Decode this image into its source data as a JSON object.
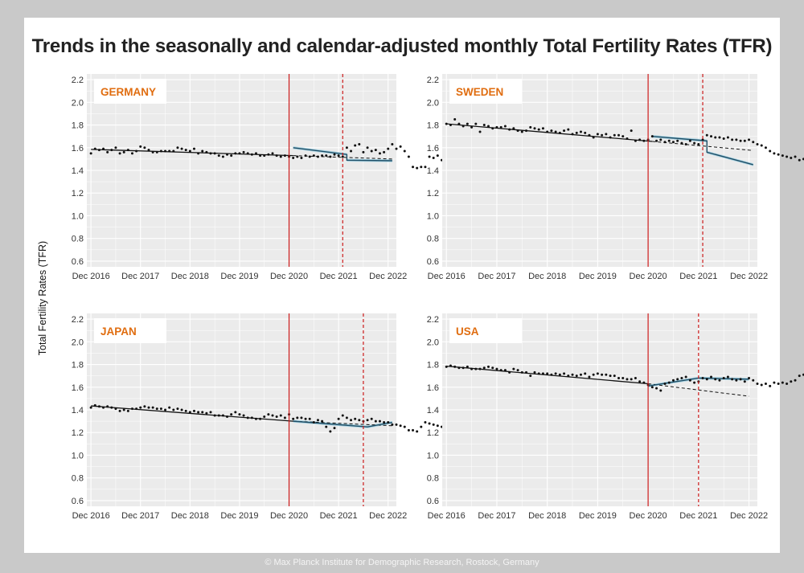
{
  "title": "Trends in the seasonally and calendar-adjusted monthly Total Fertility Rates (TFR)",
  "ylabel": "Total Fertility Rates (TFR)",
  "footer": "© Max Planck Institute for Demographic Research, Rostock, Germany",
  "colors": {
    "background": "#c9c9c9",
    "panel": "#ebebeb",
    "grid": "#ffffff",
    "points": "#111111",
    "trend": "#111111",
    "fitted": "#1f4e66",
    "ribbon": "#9dcfe0",
    "vline": "#cc1a1a",
    "country_label": "#e06d10"
  },
  "chart_data": [
    {
      "type": "scatter",
      "country": "GERMANY",
      "x_ticks": [
        "Dec 2016",
        "Dec 2017",
        "Dec 2018",
        "Dec 2019",
        "Dec 2020",
        "Dec 2021",
        "Dec 2022"
      ],
      "y_ticks": [
        "0.6",
        "0.8",
        "1.0",
        "1.2",
        "1.4",
        "1.6",
        "1.8",
        "2.0",
        "2.2"
      ],
      "xlim": [
        "2016-11",
        "2023-02"
      ],
      "ylim": [
        0.55,
        2.25
      ],
      "vline_solid": "2020-12",
      "vline_dashed": "2022-01",
      "points": [
        1.55,
        1.59,
        1.58,
        1.59,
        1.56,
        1.58,
        1.6,
        1.55,
        1.56,
        1.58,
        1.55,
        1.57,
        1.61,
        1.6,
        1.58,
        1.56,
        1.56,
        1.57,
        1.57,
        1.57,
        1.57,
        1.6,
        1.59,
        1.58,
        1.57,
        1.59,
        1.55,
        1.57,
        1.56,
        1.55,
        1.55,
        1.53,
        1.52,
        1.54,
        1.53,
        1.55,
        1.55,
        1.56,
        1.55,
        1.54,
        1.55,
        1.53,
        1.53,
        1.54,
        1.55,
        1.53,
        1.52,
        1.53,
        1.52,
        1.51,
        1.52,
        1.51,
        1.53,
        1.52,
        1.53,
        1.52,
        1.53,
        1.53,
        1.52,
        1.54,
        1.53,
        1.52,
        1.6,
        1.57,
        1.62,
        1.63,
        1.56,
        1.6,
        1.57,
        1.58,
        1.55,
        1.56,
        1.59,
        1.63,
        1.59,
        1.61,
        1.57,
        1.52,
        1.43,
        1.42,
        1.43,
        1.43,
        1.52,
        1.51,
        1.53,
        1.49,
        1.5,
        1.47,
        1.49,
        1.5,
        1.49,
        1.47,
        1.48
      ],
      "trend_line": [
        [
          0,
          1.585
        ],
        [
          49,
          1.53
        ]
      ],
      "trend_extension": [
        [
          49,
          1.53
        ],
        [
          73,
          1.5
        ]
      ],
      "fitted": [
        [
          49,
          1.6
        ],
        [
          62,
          1.54
        ],
        [
          62,
          1.49
        ],
        [
          73,
          1.485
        ]
      ]
    },
    {
      "type": "scatter",
      "country": "SWEDEN",
      "x_ticks": [
        "Dec 2016",
        "Dec 2017",
        "Dec 2018",
        "Dec 2019",
        "Dec 2020",
        "Dec 2021",
        "Dec 2022"
      ],
      "y_ticks": [
        "0.6",
        "0.8",
        "1.0",
        "1.2",
        "1.4",
        "1.6",
        "1.8",
        "2.0",
        "2.2"
      ],
      "xlim": [
        "2016-11",
        "2023-02"
      ],
      "ylim": [
        0.55,
        2.25
      ],
      "vline_solid": "2020-12",
      "vline_dashed": "2022-01",
      "points": [
        1.81,
        1.8,
        1.85,
        1.81,
        1.79,
        1.81,
        1.78,
        1.81,
        1.74,
        1.8,
        1.79,
        1.77,
        1.78,
        1.78,
        1.79,
        1.76,
        1.77,
        1.75,
        1.74,
        1.75,
        1.78,
        1.77,
        1.76,
        1.77,
        1.74,
        1.75,
        1.74,
        1.73,
        1.75,
        1.76,
        1.72,
        1.73,
        1.74,
        1.73,
        1.71,
        1.69,
        1.72,
        1.71,
        1.72,
        1.69,
        1.71,
        1.71,
        1.7,
        1.68,
        1.75,
        1.66,
        1.67,
        1.66,
        1.67,
        1.7,
        1.66,
        1.67,
        1.65,
        1.66,
        1.65,
        1.66,
        1.64,
        1.63,
        1.66,
        1.64,
        1.63,
        1.67,
        1.71,
        1.7,
        1.69,
        1.69,
        1.68,
        1.69,
        1.67,
        1.67,
        1.66,
        1.66,
        1.67,
        1.65,
        1.63,
        1.62,
        1.6,
        1.57,
        1.55,
        1.54,
        1.53,
        1.52,
        1.51,
        1.52,
        1.49,
        1.5,
        1.48,
        1.47,
        1.45,
        1.44,
        1.44,
        1.45,
        1.49
      ],
      "trend_line": [
        [
          0,
          1.81
        ],
        [
          49,
          1.655
        ]
      ],
      "trend_extension": [
        [
          49,
          1.655
        ],
        [
          73,
          1.575
        ]
      ],
      "fitted": [
        [
          49,
          1.7
        ],
        [
          62,
          1.66
        ],
        [
          62,
          1.56
        ],
        [
          73,
          1.45
        ]
      ]
    },
    {
      "type": "scatter",
      "country": "JAPAN",
      "x_ticks": [
        "Dec 2016",
        "Dec 2017",
        "Dec 2018",
        "Dec 2019",
        "Dec 2020",
        "Dec 2021",
        "Dec 2022"
      ],
      "y_ticks": [
        "0.6",
        "0.8",
        "1.0",
        "1.2",
        "1.4",
        "1.6",
        "1.8",
        "2.0",
        "2.2"
      ],
      "xlim": [
        "2016-11",
        "2023-02"
      ],
      "ylim": [
        0.55,
        2.25
      ],
      "vline_solid": "2020-12",
      "vline_dashed": "2022-06",
      "points": [
        1.42,
        1.44,
        1.43,
        1.42,
        1.43,
        1.42,
        1.41,
        1.39,
        1.4,
        1.39,
        1.41,
        1.41,
        1.42,
        1.43,
        1.42,
        1.42,
        1.41,
        1.41,
        1.4,
        1.42,
        1.4,
        1.41,
        1.4,
        1.39,
        1.38,
        1.39,
        1.38,
        1.38,
        1.37,
        1.38,
        1.35,
        1.35,
        1.35,
        1.34,
        1.36,
        1.38,
        1.36,
        1.35,
        1.33,
        1.33,
        1.32,
        1.32,
        1.34,
        1.36,
        1.35,
        1.34,
        1.35,
        1.33,
        1.36,
        1.32,
        1.33,
        1.33,
        1.32,
        1.32,
        1.29,
        1.31,
        1.3,
        1.25,
        1.21,
        1.24,
        1.32,
        1.35,
        1.33,
        1.31,
        1.32,
        1.31,
        1.3,
        1.31,
        1.32,
        1.3,
        1.3,
        1.29,
        1.29,
        1.27,
        1.27,
        1.26,
        1.25,
        1.22,
        1.22,
        1.21,
        1.25,
        1.29,
        1.28,
        1.27,
        1.26,
        1.25,
        1.24,
        1.29,
        1.3
      ],
      "trend_line": [
        [
          0,
          1.435
        ],
        [
          49,
          1.3
        ]
      ],
      "trend_extension": [
        [
          49,
          1.3
        ],
        [
          73,
          1.26
        ]
      ],
      "fitted": [
        [
          49,
          1.3
        ],
        [
          67,
          1.25
        ],
        [
          73,
          1.29
        ]
      ]
    },
    {
      "type": "scatter",
      "country": "USA",
      "x_ticks": [
        "Dec 2016",
        "Dec 2017",
        "Dec 2018",
        "Dec 2019",
        "Dec 2020",
        "Dec 2021",
        "Dec 2022"
      ],
      "y_ticks": [
        "0.6",
        "0.8",
        "1.0",
        "1.2",
        "1.4",
        "1.6",
        "1.8",
        "2.0",
        "2.2"
      ],
      "xlim": [
        "2016-11",
        "2023-02"
      ],
      "ylim": [
        0.55,
        2.25
      ],
      "vline_solid": "2020-12",
      "vline_dashed": "2021-12",
      "points": [
        1.78,
        1.79,
        1.78,
        1.77,
        1.77,
        1.78,
        1.76,
        1.76,
        1.76,
        1.77,
        1.78,
        1.77,
        1.76,
        1.75,
        1.75,
        1.73,
        1.76,
        1.75,
        1.73,
        1.73,
        1.7,
        1.73,
        1.72,
        1.72,
        1.72,
        1.71,
        1.72,
        1.71,
        1.72,
        1.7,
        1.71,
        1.7,
        1.71,
        1.72,
        1.69,
        1.71,
        1.72,
        1.71,
        1.71,
        1.7,
        1.7,
        1.68,
        1.68,
        1.67,
        1.67,
        1.68,
        1.65,
        1.64,
        1.62,
        1.6,
        1.59,
        1.57,
        1.63,
        1.64,
        1.66,
        1.67,
        1.68,
        1.69,
        1.66,
        1.64,
        1.65,
        1.68,
        1.67,
        1.69,
        1.67,
        1.66,
        1.68,
        1.69,
        1.67,
        1.66,
        1.67,
        1.65,
        1.68,
        1.66,
        1.63,
        1.62,
        1.63,
        1.61,
        1.64,
        1.63,
        1.64,
        1.63,
        1.65,
        1.66,
        1.7,
        1.71
      ],
      "trend_line": [
        [
          0,
          1.785
        ],
        [
          48,
          1.63
        ]
      ],
      "trend_extension": [
        [
          48,
          1.63
        ],
        [
          72,
          1.52
        ]
      ],
      "fitted": [
        [
          48,
          1.61
        ],
        [
          60,
          1.68
        ],
        [
          72,
          1.67
        ]
      ]
    }
  ]
}
